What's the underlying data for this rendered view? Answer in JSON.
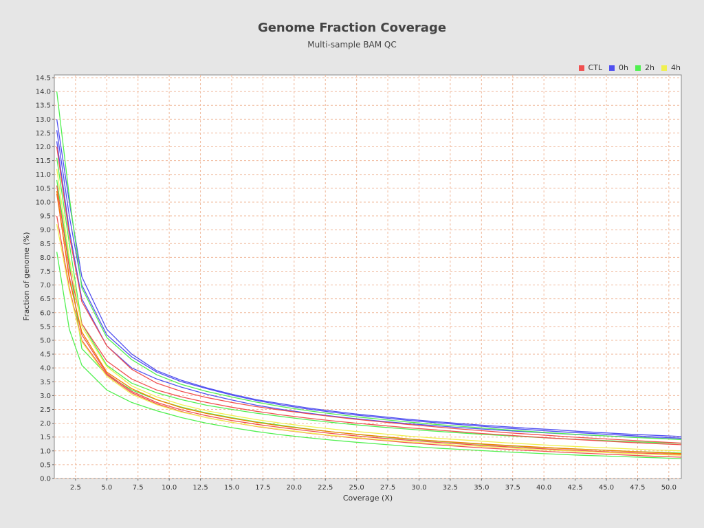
{
  "chart_data": {
    "type": "line",
    "title": "Genome Fraction Coverage",
    "subtitle": "Multi-sample BAM QC",
    "xlabel": "Coverage (X)",
    "ylabel": "Fraction of genome (%)",
    "xlim": [
      0.8,
      51
    ],
    "ylim": [
      0,
      14.6
    ],
    "x_ticks": [
      2.5,
      5.0,
      7.5,
      10.0,
      12.5,
      15.0,
      17.5,
      20.0,
      22.5,
      25.0,
      27.5,
      30.0,
      32.5,
      35.0,
      37.5,
      40.0,
      42.5,
      45.0,
      47.5,
      50.0
    ],
    "y_ticks": [
      0.0,
      0.5,
      1.0,
      1.5,
      2.0,
      2.5,
      3.0,
      3.5,
      4.0,
      4.5,
      5.0,
      5.5,
      6.0,
      6.5,
      7.0,
      7.5,
      8.0,
      8.5,
      9.0,
      9.5,
      10.0,
      10.5,
      11.0,
      11.5,
      12.0,
      12.5,
      13.0,
      13.5,
      14.0,
      14.5
    ],
    "grid": true,
    "legend_position": "top-right",
    "legend": [
      {
        "label": "CTL",
        "color": "#f05050"
      },
      {
        "label": "0h",
        "color": "#5050f0"
      },
      {
        "label": "2h",
        "color": "#50f050"
      },
      {
        "label": "4h",
        "color": "#f0f050"
      }
    ],
    "x": [
      1,
      2,
      3,
      5,
      7,
      9,
      11,
      13,
      15,
      17,
      19,
      21,
      23,
      25,
      27,
      29,
      31,
      33,
      35,
      37,
      39,
      41,
      43,
      45,
      47,
      49,
      51
    ],
    "series": [
      {
        "group": "0h",
        "color": "#5050f0",
        "values": [
          13.0,
          10.0,
          7.3,
          5.4,
          4.5,
          3.9,
          3.55,
          3.28,
          3.05,
          2.85,
          2.7,
          2.56,
          2.44,
          2.33,
          2.24,
          2.15,
          2.07,
          2.0,
          1.93,
          1.87,
          1.81,
          1.76,
          1.7,
          1.65,
          1.6,
          1.56,
          1.52
        ]
      },
      {
        "group": "0h",
        "color": "#5050f0",
        "values": [
          12.6,
          9.5,
          7.0,
          5.2,
          4.4,
          3.85,
          3.5,
          3.25,
          3.02,
          2.82,
          2.66,
          2.52,
          2.4,
          2.29,
          2.2,
          2.11,
          2.03,
          1.96,
          1.89,
          1.82,
          1.76,
          1.7,
          1.65,
          1.6,
          1.55,
          1.5,
          1.46
        ]
      },
      {
        "group": "0h",
        "color": "#5050f0",
        "values": [
          12.2,
          9.0,
          6.5,
          4.8,
          4.0,
          3.6,
          3.3,
          3.05,
          2.84,
          2.65,
          2.5,
          2.37,
          2.26,
          2.16,
          2.07,
          1.99,
          1.92,
          1.85,
          1.79,
          1.73,
          1.68,
          1.63,
          1.58,
          1.54,
          1.5,
          1.46,
          1.42
        ]
      },
      {
        "group": "2h",
        "color": "#50f050",
        "values": [
          14.0,
          10.2,
          6.9,
          5.1,
          4.3,
          3.75,
          3.4,
          3.15,
          2.95,
          2.76,
          2.6,
          2.46,
          2.34,
          2.23,
          2.14,
          2.05,
          1.97,
          1.9,
          1.83,
          1.76,
          1.7,
          1.64,
          1.59,
          1.54,
          1.49,
          1.45,
          1.41
        ]
      },
      {
        "group": "2h",
        "color": "#50f050",
        "values": [
          11.6,
          8.5,
          5.6,
          4.1,
          3.45,
          3.1,
          2.85,
          2.65,
          2.5,
          2.36,
          2.24,
          2.13,
          2.03,
          1.94,
          1.86,
          1.79,
          1.72,
          1.66,
          1.6,
          1.55,
          1.5,
          1.45,
          1.41,
          1.37,
          1.33,
          1.3,
          1.27
        ]
      },
      {
        "group": "2h",
        "color": "#50f050",
        "values": [
          10.8,
          7.8,
          4.7,
          3.75,
          3.2,
          2.85,
          2.58,
          2.37,
          2.2,
          2.05,
          1.92,
          1.8,
          1.69,
          1.6,
          1.51,
          1.43,
          1.36,
          1.3,
          1.24,
          1.19,
          1.14,
          1.1,
          1.06,
          1.02,
          0.98,
          0.95,
          0.92
        ]
      },
      {
        "group": "2h",
        "color": "#50f050",
        "values": [
          8.2,
          5.4,
          4.1,
          3.2,
          2.75,
          2.45,
          2.2,
          2.0,
          1.84,
          1.7,
          1.58,
          1.48,
          1.39,
          1.31,
          1.24,
          1.17,
          1.11,
          1.06,
          1.01,
          0.96,
          0.92,
          0.88,
          0.84,
          0.81,
          0.78,
          0.75,
          0.72
        ]
      },
      {
        "group": "CTL",
        "color": "#f05050",
        "values": [
          12.0,
          8.8,
          6.4,
          4.8,
          3.95,
          3.45,
          3.15,
          2.93,
          2.75,
          2.6,
          2.47,
          2.35,
          2.24,
          2.14,
          2.05,
          1.96,
          1.88,
          1.8,
          1.73,
          1.66,
          1.6,
          1.54,
          1.48,
          1.43,
          1.38,
          1.33,
          1.28
        ]
      },
      {
        "group": "CTL",
        "color": "#f05050",
        "values": [
          10.6,
          7.6,
          5.6,
          4.25,
          3.6,
          3.2,
          2.95,
          2.75,
          2.58,
          2.43,
          2.3,
          2.19,
          2.09,
          2.0,
          1.92,
          1.84,
          1.77,
          1.7,
          1.63,
          1.57,
          1.51,
          1.45,
          1.4,
          1.35,
          1.3,
          1.26,
          1.22
        ]
      },
      {
        "group": "CTL",
        "color": "#f05050",
        "values": [
          10.3,
          7.3,
          5.2,
          3.8,
          3.15,
          2.75,
          2.48,
          2.27,
          2.1,
          1.96,
          1.84,
          1.73,
          1.63,
          1.54,
          1.46,
          1.39,
          1.32,
          1.26,
          1.2,
          1.15,
          1.1,
          1.05,
          1.01,
          0.97,
          0.93,
          0.9,
          0.87
        ]
      },
      {
        "group": "CTL",
        "color": "#f05050",
        "values": [
          9.5,
          6.9,
          5.0,
          3.75,
          3.1,
          2.7,
          2.42,
          2.2,
          2.03,
          1.88,
          1.76,
          1.65,
          1.55,
          1.46,
          1.38,
          1.3,
          1.23,
          1.17,
          1.11,
          1.06,
          1.01,
          0.96,
          0.92,
          0.88,
          0.84,
          0.8,
          0.77
        ]
      },
      {
        "group": "4h",
        "color": "#f0f050",
        "values": [
          11.2,
          8.0,
          5.5,
          4.05,
          3.35,
          2.95,
          2.67,
          2.45,
          2.28,
          2.13,
          2.0,
          1.89,
          1.79,
          1.7,
          1.62,
          1.54,
          1.47,
          1.41,
          1.35,
          1.29,
          1.24,
          1.19,
          1.15,
          1.11,
          1.07,
          1.03,
          1.0
        ]
      },
      {
        "group": "4h",
        "color": "#f0f050",
        "values": [
          9.2,
          6.8,
          4.95,
          3.7,
          3.05,
          2.67,
          2.4,
          2.2,
          2.03,
          1.89,
          1.77,
          1.66,
          1.56,
          1.48,
          1.4,
          1.33,
          1.27,
          1.21,
          1.16,
          1.11,
          1.06,
          1.02,
          0.98,
          0.94,
          0.9,
          0.87,
          0.84
        ]
      },
      {
        "group": "4h",
        "color": "#f08000",
        "values": [
          10.4,
          7.2,
          5.3,
          3.85,
          3.25,
          2.85,
          2.56,
          2.35,
          2.18,
          2.03,
          1.9,
          1.79,
          1.69,
          1.6,
          1.52,
          1.44,
          1.37,
          1.31,
          1.25,
          1.2,
          1.15,
          1.1,
          1.06,
          1.02,
          0.98,
          0.94,
          0.9
        ]
      }
    ]
  }
}
